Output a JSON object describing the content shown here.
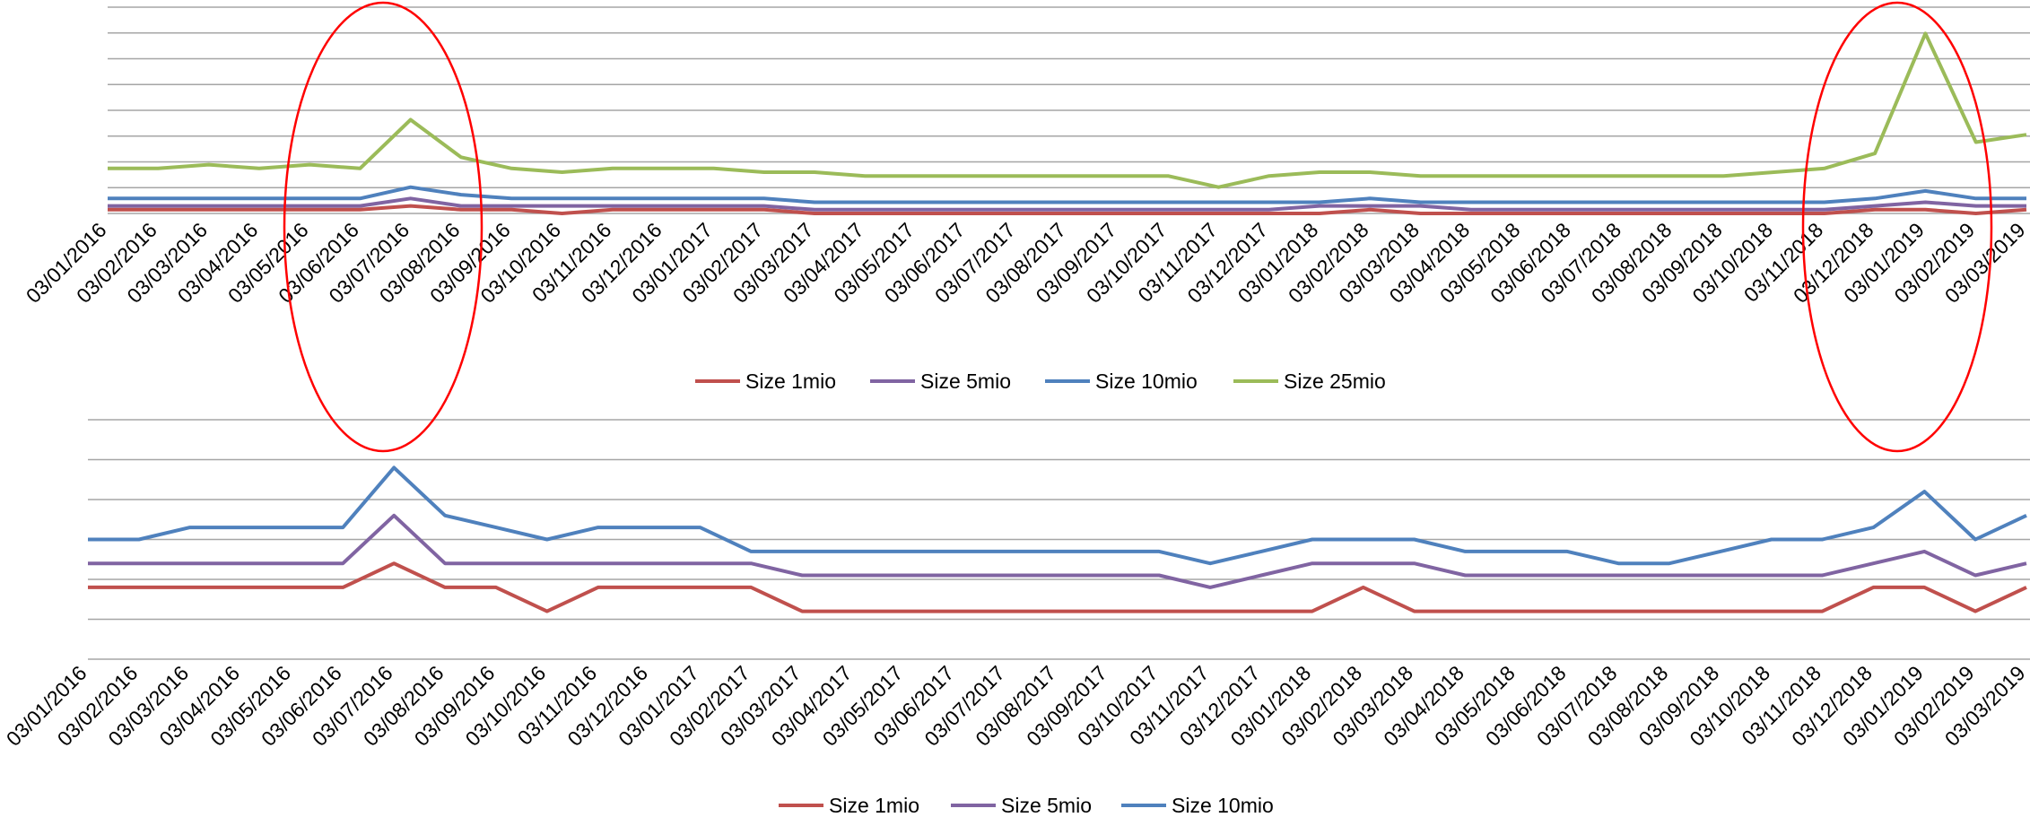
{
  "chart_data": [
    {
      "type": "line",
      "title": "",
      "xlabel": "",
      "ylabel": "",
      "x_tick_labels": [
        "03/01/2016",
        "03/02/2016",
        "03/03/2016",
        "03/04/2016",
        "03/05/2016",
        "03/06/2016",
        "03/07/2016",
        "03/08/2016",
        "03/09/2016",
        "03/10/2016",
        "03/11/2016",
        "03/12/2016",
        "03/01/2017",
        "03/02/2017",
        "03/03/2017",
        "03/04/2017",
        "03/05/2017",
        "03/06/2017",
        "03/07/2017",
        "03/08/2017",
        "03/09/2017",
        "03/10/2017",
        "03/11/2017",
        "03/12/2017",
        "03/01/2018",
        "03/02/2018",
        "03/03/2018",
        "03/04/2018",
        "03/05/2018",
        "03/06/2018",
        "03/07/2018",
        "03/08/2018",
        "03/09/2018",
        "03/10/2018",
        "03/11/2018",
        "03/12/2018",
        "03/01/2019",
        "03/02/2019",
        "03/03/2019"
      ],
      "y_axis_labels_shown": false,
      "ylim": [
        0,
        55
      ],
      "grid": "horizontal",
      "legend_position": "bottom",
      "colors": {
        "Size 1mio": "#c0504d",
        "Size 5mio": "#8064a2",
        "Size 10mio": "#4f81bd",
        "Size 25mio": "#9bbb59"
      },
      "series": [
        {
          "name": "Size 1mio",
          "values": [
            1,
            1,
            1,
            1,
            1,
            1,
            2,
            1,
            1,
            0,
            1,
            1,
            1,
            1,
            0,
            0,
            0,
            0,
            0,
            0,
            0,
            0,
            0,
            0,
            0,
            1,
            0,
            0,
            0,
            0,
            0,
            0,
            0,
            0,
            0,
            1,
            1,
            0,
            1
          ]
        },
        {
          "name": "Size 5mio",
          "values": [
            2,
            2,
            2,
            2,
            2,
            2,
            4,
            2,
            2,
            2,
            2,
            2,
            2,
            2,
            1,
            1,
            1,
            1,
            1,
            1,
            1,
            1,
            1,
            1,
            2,
            2,
            2,
            1,
            1,
            1,
            1,
            1,
            1,
            1,
            1,
            2,
            3,
            2,
            2
          ]
        },
        {
          "name": "Size 10mio",
          "values": [
            4,
            4,
            4,
            4,
            4,
            4,
            7,
            5,
            4,
            4,
            4,
            4,
            4,
            4,
            3,
            3,
            3,
            3,
            3,
            3,
            3,
            3,
            3,
            3,
            3,
            4,
            3,
            3,
            3,
            3,
            3,
            3,
            3,
            3,
            3,
            4,
            6,
            4,
            4
          ]
        },
        {
          "name": "Size 25mio",
          "values": [
            12,
            12,
            13,
            12,
            13,
            12,
            25,
            15,
            12,
            11,
            12,
            12,
            12,
            11,
            11,
            10,
            10,
            10,
            10,
            10,
            10,
            10,
            7,
            10,
            11,
            11,
            10,
            10,
            10,
            10,
            10,
            10,
            10,
            11,
            12,
            16,
            48,
            19,
            21
          ]
        }
      ]
    },
    {
      "type": "line",
      "title": "",
      "xlabel": "",
      "ylabel": "",
      "x_tick_labels": [
        "03/01/2016",
        "03/02/2016",
        "03/03/2016",
        "03/04/2016",
        "03/05/2016",
        "03/06/2016",
        "03/07/2016",
        "03/08/2016",
        "03/09/2016",
        "03/10/2016",
        "03/11/2016",
        "03/12/2016",
        "03/01/2017",
        "03/02/2017",
        "03/03/2017",
        "03/04/2017",
        "03/05/2017",
        "03/06/2017",
        "03/07/2017",
        "03/08/2017",
        "03/09/2017",
        "03/10/2017",
        "03/11/2017",
        "03/12/2017",
        "03/01/2018",
        "03/02/2018",
        "03/03/2018",
        "03/04/2018",
        "03/05/2018",
        "03/06/2018",
        "03/07/2018",
        "03/08/2018",
        "03/09/2018",
        "03/10/2018",
        "03/11/2018",
        "03/12/2018",
        "03/01/2019",
        "03/02/2019",
        "03/03/2019"
      ],
      "y_axis_labels_shown": false,
      "ylim": [
        0,
        10
      ],
      "grid": "horizontal",
      "legend_position": "bottom",
      "colors": {
        "Size 1mio": "#c0504d",
        "Size 5mio": "#8064a2",
        "Size 10mio": "#4f81bd"
      },
      "series": [
        {
          "name": "Size 1mio",
          "values": [
            3,
            3,
            3,
            3,
            3,
            3,
            4,
            3,
            3,
            2,
            3,
            3,
            3,
            3,
            2,
            2,
            2,
            2,
            2,
            2,
            2,
            2,
            2,
            2,
            2,
            3,
            2,
            2,
            2,
            2,
            2,
            2,
            2,
            2,
            2,
            3,
            3,
            2,
            3
          ]
        },
        {
          "name": "Size 5mio",
          "values": [
            4,
            4,
            4,
            4,
            4,
            4,
            6,
            4,
            4,
            4,
            4,
            4,
            4,
            4,
            3.5,
            3.5,
            3.5,
            3.5,
            3.5,
            3.5,
            3.5,
            3.5,
            3,
            3.5,
            4,
            4,
            4,
            3.5,
            3.5,
            3.5,
            3.5,
            3.5,
            3.5,
            3.5,
            3.5,
            4,
            4.5,
            3.5,
            4
          ]
        },
        {
          "name": "Size 10mio",
          "values": [
            5,
            5,
            5.5,
            5.5,
            5.5,
            5.5,
            8,
            6,
            5.5,
            5,
            5.5,
            5.5,
            5.5,
            4.5,
            4.5,
            4.5,
            4.5,
            4.5,
            4.5,
            4.5,
            4.5,
            4.5,
            4,
            4.5,
            5,
            5,
            5,
            4.5,
            4.5,
            4.5,
            4,
            4,
            4.5,
            5,
            5,
            5.5,
            7,
            5,
            6
          ]
        }
      ]
    }
  ]
}
